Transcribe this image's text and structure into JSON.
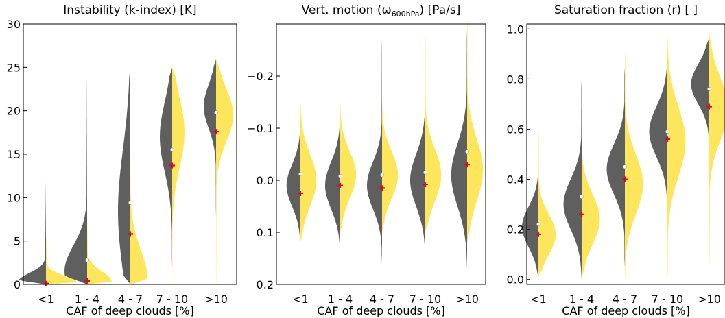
{
  "colors": {
    "dark": "#5f5f5f",
    "light": "#fde65c",
    "median": "#ffffff",
    "mean": "#c8102e"
  },
  "chart_data": [
    {
      "type": "violin",
      "title_main": "Instability (k-index) [K]",
      "xlabel": "CAF of deep clouds [%]",
      "categories": [
        "<1",
        "1 - 4",
        "4 - 7",
        "7 - 10",
        ">10"
      ],
      "ylim": [
        0,
        30
      ],
      "yticks": [
        0,
        5,
        10,
        15,
        20,
        25,
        30
      ],
      "ytick_labels": [
        "0",
        "5",
        "10",
        "15",
        "20",
        "25",
        "30"
      ],
      "y_inverted": false,
      "median": [
        0.1,
        2.8,
        9.4,
        15.5,
        19.8
      ],
      "mean": [
        0.1,
        0.4,
        5.8,
        13.7,
        17.6
      ],
      "dark_dist": [
        {
          "min": 0.0,
          "max": 12.0,
          "peak": 0.3,
          "w_peak": 0.68,
          "spread": 1.0
        },
        {
          "min": 0.0,
          "max": 24.0,
          "peak": 1.5,
          "w_peak": 0.55,
          "spread": 3.0
        },
        {
          "min": 0.0,
          "max": 25.0,
          "peak": 8.5,
          "w_peak": 0.3,
          "spread": 7.0
        },
        {
          "min": 2.0,
          "max": 25.0,
          "peak": 17.0,
          "w_peak": 0.3,
          "spread": 4.0
        },
        {
          "min": 8.0,
          "max": 26.0,
          "peak": 20.5,
          "w_peak": 0.3,
          "spread": 2.5
        }
      ],
      "light_dist": [
        {
          "min": 0.0,
          "max": 6.0,
          "peak": 0.2,
          "w_peak": 0.75,
          "spread": 0.8
        },
        {
          "min": 0.0,
          "max": 8.0,
          "peak": 0.3,
          "w_peak": 0.6,
          "spread": 1.2
        },
        {
          "min": 0.0,
          "max": 16.0,
          "peak": 0.5,
          "w_peak": 0.42,
          "spread": 3.5
        },
        {
          "min": 0.0,
          "max": 25.0,
          "peak": 17.5,
          "w_peak": 0.3,
          "spread": 4.0
        },
        {
          "min": 0.0,
          "max": 26.0,
          "peak": 19.5,
          "w_peak": 0.42,
          "spread": 3.0
        }
      ]
    },
    {
      "type": "violin",
      "title_main": "Vert. motion (ω",
      "title_sub": "600hPa",
      "title_end": ") [Pa/s]",
      "xlabel": "CAF of deep clouds [%]",
      "categories": [
        "<1",
        "1 - 4",
        "4 - 7",
        "7 - 10",
        ">10"
      ],
      "ylim": [
        -0.3,
        0.2
      ],
      "yticks": [
        -0.2,
        -0.1,
        0.0,
        0.1,
        0.2
      ],
      "ytick_labels": [
        "−0.2",
        "−0.1",
        "0.0",
        "0.1",
        "0.2"
      ],
      "y_inverted": true,
      "median": [
        -0.012,
        -0.008,
        -0.01,
        -0.015,
        -0.055
      ],
      "mean": [
        0.025,
        0.01,
        0.015,
        0.008,
        -0.03
      ],
      "dark_dist": [
        {
          "min": -0.28,
          "max": 0.17,
          "peak": 0.01,
          "w_peak": 0.35,
          "spread": 0.04
        },
        {
          "min": -0.28,
          "max": 0.16,
          "peak": 0.01,
          "w_peak": 0.38,
          "spread": 0.045
        },
        {
          "min": -0.27,
          "max": 0.16,
          "peak": 0.01,
          "w_peak": 0.38,
          "spread": 0.045
        },
        {
          "min": -0.28,
          "max": 0.16,
          "peak": 0.0,
          "w_peak": 0.38,
          "spread": 0.05
        },
        {
          "min": -0.29,
          "max": 0.17,
          "peak": -0.01,
          "w_peak": 0.4,
          "spread": 0.06
        }
      ],
      "light_dist": [
        {
          "min": -0.15,
          "max": 0.12,
          "peak": 0.0,
          "w_peak": 0.4,
          "spread": 0.05
        },
        {
          "min": -0.15,
          "max": 0.1,
          "peak": -0.01,
          "w_peak": 0.4,
          "spread": 0.045
        },
        {
          "min": -0.15,
          "max": 0.1,
          "peak": -0.01,
          "w_peak": 0.4,
          "spread": 0.045
        },
        {
          "min": -0.28,
          "max": 0.1,
          "peak": -0.01,
          "w_peak": 0.4,
          "spread": 0.05
        },
        {
          "min": -0.31,
          "max": 0.12,
          "peak": -0.02,
          "w_peak": 0.4,
          "spread": 0.06
        }
      ]
    },
    {
      "type": "violin",
      "title_main": "Saturation fraction (r) [ ]",
      "xlabel": "CAF of deep clouds [%]",
      "categories": [
        "<1",
        "1 - 4",
        "4 - 7",
        "7 - 10",
        ">10"
      ],
      "ylim": [
        -0.02,
        1.02
      ],
      "yticks": [
        0.0,
        0.2,
        0.4,
        0.6,
        0.8,
        1.0
      ],
      "ytick_labels": [
        "0.0",
        "0.2",
        "0.4",
        "0.6",
        "0.8",
        "1.0"
      ],
      "y_inverted": false,
      "median": [
        0.22,
        0.33,
        0.45,
        0.59,
        0.76
      ],
      "mean": [
        0.18,
        0.26,
        0.4,
        0.56,
        0.69
      ],
      "dark_dist": [
        {
          "min": 0.0,
          "max": 0.75,
          "peak": 0.21,
          "w_peak": 0.38,
          "spread": 0.08
        },
        {
          "min": 0.0,
          "max": 0.8,
          "peak": 0.3,
          "w_peak": 0.42,
          "spread": 0.1
        },
        {
          "min": 0.05,
          "max": 0.85,
          "peak": 0.44,
          "w_peak": 0.42,
          "spread": 0.1
        },
        {
          "min": 0.1,
          "max": 0.9,
          "peak": 0.59,
          "w_peak": 0.42,
          "spread": 0.1
        },
        {
          "min": 0.25,
          "max": 0.97,
          "peak": 0.78,
          "w_peak": 0.42,
          "spread": 0.08
        }
      ],
      "light_dist": [
        {
          "min": 0.01,
          "max": 0.6,
          "peak": 0.18,
          "w_peak": 0.4,
          "spread": 0.08
        },
        {
          "min": 0.0,
          "max": 0.8,
          "peak": 0.24,
          "w_peak": 0.42,
          "spread": 0.1
        },
        {
          "min": 0.0,
          "max": 0.92,
          "peak": 0.38,
          "w_peak": 0.42,
          "spread": 0.12
        },
        {
          "min": 0.0,
          "max": 0.98,
          "peak": 0.55,
          "w_peak": 0.42,
          "spread": 0.14
        },
        {
          "min": 0.05,
          "max": 0.99,
          "peak": 0.68,
          "w_peak": 0.45,
          "spread": 0.12
        }
      ]
    }
  ]
}
